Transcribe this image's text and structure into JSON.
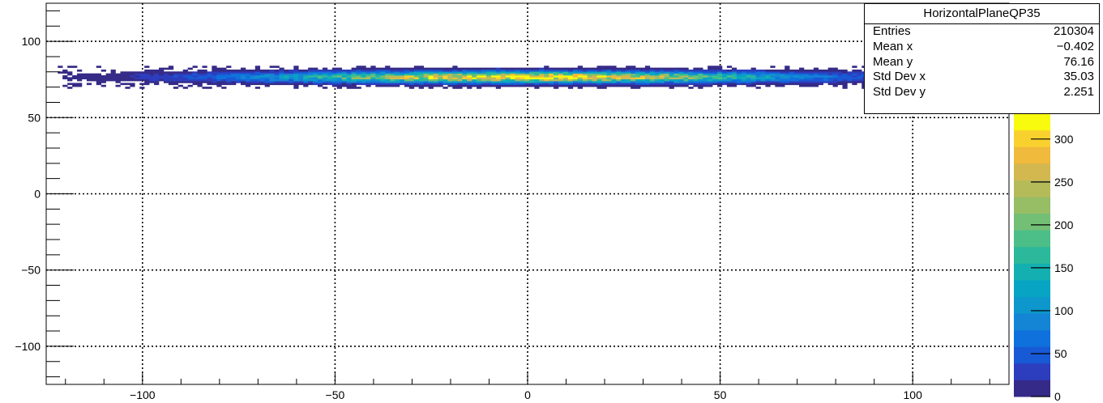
{
  "chart_data": {
    "type": "heatmap",
    "title": "",
    "xlabel": "",
    "ylabel": "",
    "xlim": [
      -125,
      125
    ],
    "ylim": [
      -125,
      125
    ],
    "x_ticks": [
      -100,
      -50,
      0,
      50,
      100
    ],
    "x_tick_labels": [
      "−100",
      "−50",
      "0",
      "50",
      "100"
    ],
    "y_ticks": [
      100,
      50,
      0,
      -50,
      -100
    ],
    "y_tick_labels": [
      "100",
      "50",
      "0",
      "−50",
      "−100"
    ],
    "grid": true,
    "band": {
      "x_range": [
        -122,
        122
      ],
      "y_center": 76,
      "y_sigma": 2.25,
      "z_max": 330
    },
    "colorbar": {
      "zlim": [
        0,
        330
      ],
      "ticks": [
        0,
        50,
        100,
        150,
        200,
        250,
        300
      ],
      "tick_labels": [
        "0",
        "50",
        "100",
        "150",
        "200",
        "250",
        "300"
      ]
    },
    "stats": {
      "title": "HorizontalPlaneQP35",
      "rows": [
        {
          "label": "Entries",
          "value": "210304"
        },
        {
          "label": "Mean x",
          "value": "−0.402"
        },
        {
          "label": "Mean y",
          "value": "76.16"
        },
        {
          "label": "Std Dev x",
          "value": "35.03"
        },
        {
          "label": "Std Dev y",
          "value": "2.251"
        }
      ]
    }
  },
  "colors": {
    "palette": [
      "#352a87",
      "#2c3dbd",
      "#1859d6",
      "#0f72dc",
      "#1485d4",
      "#0d97cc",
      "#08a4c3",
      "#14b0b1",
      "#2cb99b",
      "#4bbf87",
      "#72bf75",
      "#97bd65",
      "#b6bb59",
      "#d3b850",
      "#f0ba3c",
      "#f9d12e",
      "#f9fb0e"
    ]
  }
}
